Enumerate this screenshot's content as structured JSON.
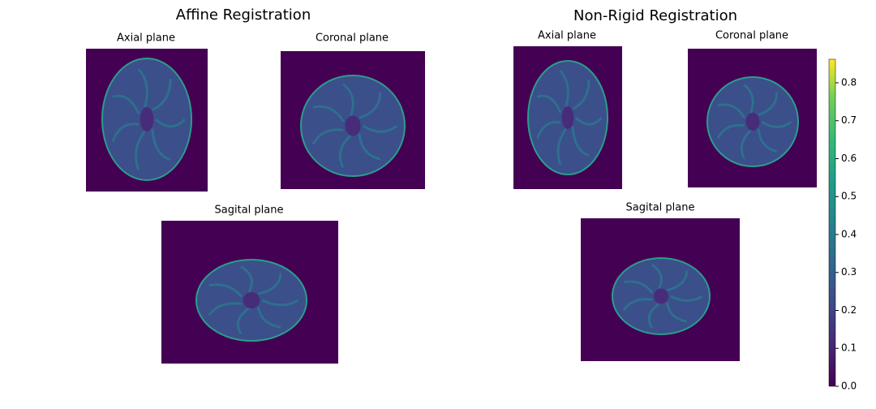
{
  "panels": [
    {
      "title": "Affine Registration",
      "views": [
        "Axial plane",
        "Coronal plane",
        "Sagital plane"
      ]
    },
    {
      "title": "Non-Rigid Registration",
      "views": [
        "Axial plane",
        "Coronal plane",
        "Sagital plane"
      ]
    }
  ],
  "colorbar": {
    "lim": [
      0,
      0.862
    ],
    "ticks": [
      {
        "value": 0,
        "label": "0.0"
      },
      0.1,
      0.2,
      0.3,
      0.4,
      0.5,
      0.6,
      0.7,
      0.8
    ]
  }
}
